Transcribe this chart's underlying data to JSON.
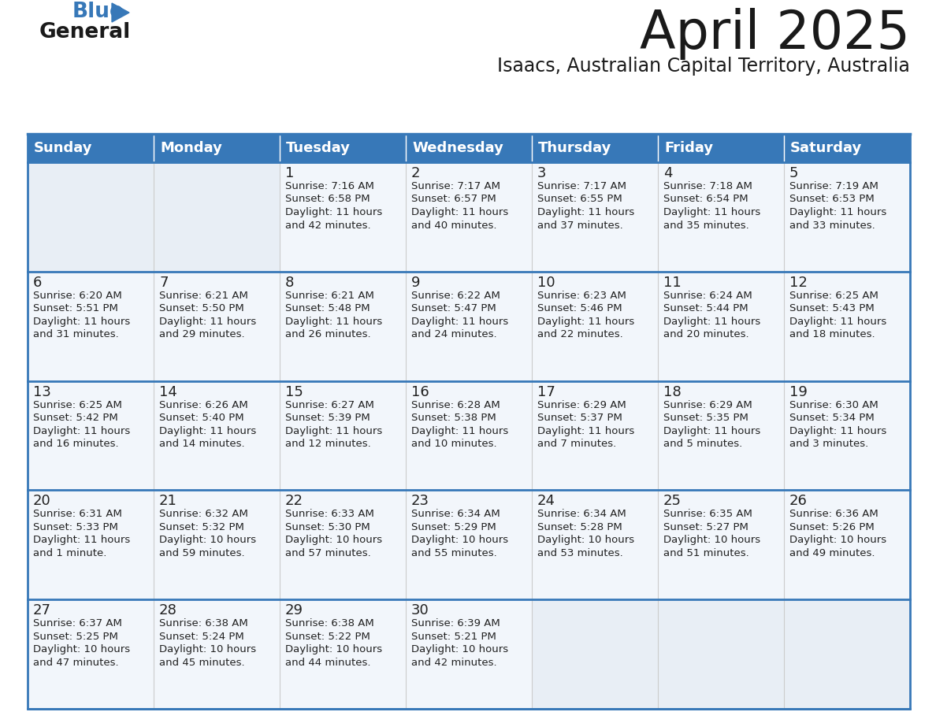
{
  "title": "April 2025",
  "subtitle": "Isaacs, Australian Capital Territory, Australia",
  "header_color": "#3778b8",
  "header_text_color": "#ffffff",
  "cell_bg_color": "#f2f6fb",
  "empty_cell_bg_color": "#e8eef5",
  "border_color": "#3778b8",
  "row_divider_color": "#3778b8",
  "text_color": "#222222",
  "grid_line_color": "#cccccc",
  "days_of_week": [
    "Sunday",
    "Monday",
    "Tuesday",
    "Wednesday",
    "Thursday",
    "Friday",
    "Saturday"
  ],
  "weeks": [
    [
      {
        "day": "",
        "text": ""
      },
      {
        "day": "",
        "text": ""
      },
      {
        "day": "1",
        "text": "Sunrise: 7:16 AM\nSunset: 6:58 PM\nDaylight: 11 hours\nand 42 minutes."
      },
      {
        "day": "2",
        "text": "Sunrise: 7:17 AM\nSunset: 6:57 PM\nDaylight: 11 hours\nand 40 minutes."
      },
      {
        "day": "3",
        "text": "Sunrise: 7:17 AM\nSunset: 6:55 PM\nDaylight: 11 hours\nand 37 minutes."
      },
      {
        "day": "4",
        "text": "Sunrise: 7:18 AM\nSunset: 6:54 PM\nDaylight: 11 hours\nand 35 minutes."
      },
      {
        "day": "5",
        "text": "Sunrise: 7:19 AM\nSunset: 6:53 PM\nDaylight: 11 hours\nand 33 minutes."
      }
    ],
    [
      {
        "day": "6",
        "text": "Sunrise: 6:20 AM\nSunset: 5:51 PM\nDaylight: 11 hours\nand 31 minutes."
      },
      {
        "day": "7",
        "text": "Sunrise: 6:21 AM\nSunset: 5:50 PM\nDaylight: 11 hours\nand 29 minutes."
      },
      {
        "day": "8",
        "text": "Sunrise: 6:21 AM\nSunset: 5:48 PM\nDaylight: 11 hours\nand 26 minutes."
      },
      {
        "day": "9",
        "text": "Sunrise: 6:22 AM\nSunset: 5:47 PM\nDaylight: 11 hours\nand 24 minutes."
      },
      {
        "day": "10",
        "text": "Sunrise: 6:23 AM\nSunset: 5:46 PM\nDaylight: 11 hours\nand 22 minutes."
      },
      {
        "day": "11",
        "text": "Sunrise: 6:24 AM\nSunset: 5:44 PM\nDaylight: 11 hours\nand 20 minutes."
      },
      {
        "day": "12",
        "text": "Sunrise: 6:25 AM\nSunset: 5:43 PM\nDaylight: 11 hours\nand 18 minutes."
      }
    ],
    [
      {
        "day": "13",
        "text": "Sunrise: 6:25 AM\nSunset: 5:42 PM\nDaylight: 11 hours\nand 16 minutes."
      },
      {
        "day": "14",
        "text": "Sunrise: 6:26 AM\nSunset: 5:40 PM\nDaylight: 11 hours\nand 14 minutes."
      },
      {
        "day": "15",
        "text": "Sunrise: 6:27 AM\nSunset: 5:39 PM\nDaylight: 11 hours\nand 12 minutes."
      },
      {
        "day": "16",
        "text": "Sunrise: 6:28 AM\nSunset: 5:38 PM\nDaylight: 11 hours\nand 10 minutes."
      },
      {
        "day": "17",
        "text": "Sunrise: 6:29 AM\nSunset: 5:37 PM\nDaylight: 11 hours\nand 7 minutes."
      },
      {
        "day": "18",
        "text": "Sunrise: 6:29 AM\nSunset: 5:35 PM\nDaylight: 11 hours\nand 5 minutes."
      },
      {
        "day": "19",
        "text": "Sunrise: 6:30 AM\nSunset: 5:34 PM\nDaylight: 11 hours\nand 3 minutes."
      }
    ],
    [
      {
        "day": "20",
        "text": "Sunrise: 6:31 AM\nSunset: 5:33 PM\nDaylight: 11 hours\nand 1 minute."
      },
      {
        "day": "21",
        "text": "Sunrise: 6:32 AM\nSunset: 5:32 PM\nDaylight: 10 hours\nand 59 minutes."
      },
      {
        "day": "22",
        "text": "Sunrise: 6:33 AM\nSunset: 5:30 PM\nDaylight: 10 hours\nand 57 minutes."
      },
      {
        "day": "23",
        "text": "Sunrise: 6:34 AM\nSunset: 5:29 PM\nDaylight: 10 hours\nand 55 minutes."
      },
      {
        "day": "24",
        "text": "Sunrise: 6:34 AM\nSunset: 5:28 PM\nDaylight: 10 hours\nand 53 minutes."
      },
      {
        "day": "25",
        "text": "Sunrise: 6:35 AM\nSunset: 5:27 PM\nDaylight: 10 hours\nand 51 minutes."
      },
      {
        "day": "26",
        "text": "Sunrise: 6:36 AM\nSunset: 5:26 PM\nDaylight: 10 hours\nand 49 minutes."
      }
    ],
    [
      {
        "day": "27",
        "text": "Sunrise: 6:37 AM\nSunset: 5:25 PM\nDaylight: 10 hours\nand 47 minutes."
      },
      {
        "day": "28",
        "text": "Sunrise: 6:38 AM\nSunset: 5:24 PM\nDaylight: 10 hours\nand 45 minutes."
      },
      {
        "day": "29",
        "text": "Sunrise: 6:38 AM\nSunset: 5:22 PM\nDaylight: 10 hours\nand 44 minutes."
      },
      {
        "day": "30",
        "text": "Sunrise: 6:39 AM\nSunset: 5:21 PM\nDaylight: 10 hours\nand 42 minutes."
      },
      {
        "day": "",
        "text": ""
      },
      {
        "day": "",
        "text": ""
      },
      {
        "day": "",
        "text": ""
      }
    ]
  ],
  "logo_triangle_color": "#3778b8",
  "logo_general_color": "#1a1a1a",
  "logo_blue_color": "#3778b8",
  "title_fontsize": 48,
  "subtitle_fontsize": 17,
  "day_header_fontsize": 13,
  "day_num_fontsize": 13,
  "cell_text_fontsize": 9.5
}
